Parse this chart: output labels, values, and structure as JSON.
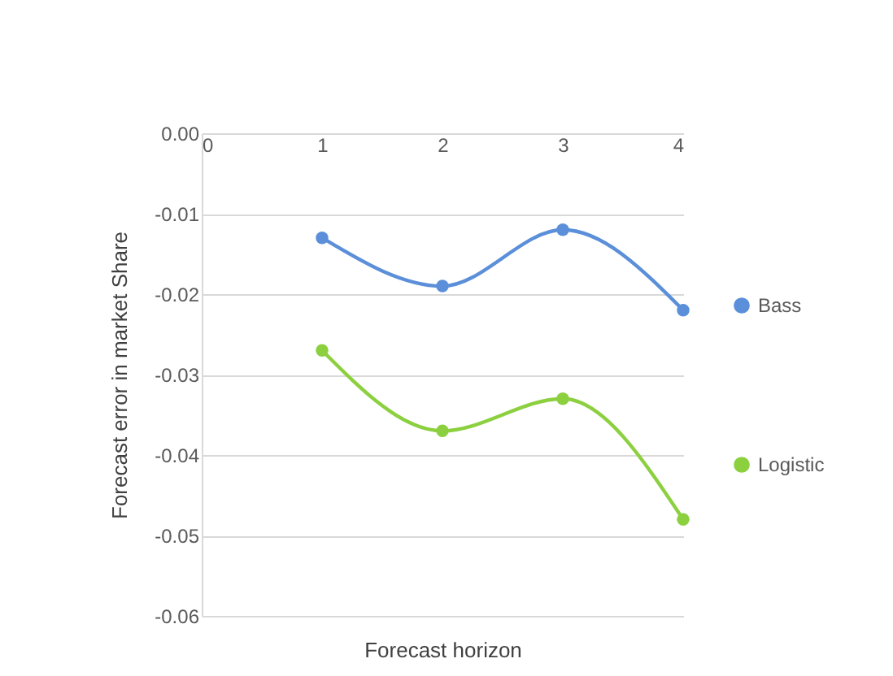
{
  "chart_data": {
    "type": "line",
    "xlabel": "Forecast horizon",
    "ylabel": "Forecast error in market Share",
    "x": [
      1,
      2,
      3,
      4
    ],
    "series": [
      {
        "name": "Bass",
        "color": "#5b8fd9",
        "values": [
          -0.013,
          -0.019,
          -0.012,
          -0.022
        ]
      },
      {
        "name": "Logistic",
        "color": "#8cd040",
        "values": [
          -0.027,
          -0.037,
          -0.033,
          -0.048
        ]
      }
    ],
    "xlim": [
      0,
      4
    ],
    "xticks": [
      0,
      1,
      2,
      3,
      4
    ],
    "ylim": [
      -0.06,
      0.0
    ],
    "yticks": [
      {
        "value": 0,
        "label": "0.00"
      },
      -0.01,
      -0.02,
      -0.03,
      -0.04,
      -0.05,
      -0.06
    ],
    "grid": "y",
    "legend": "right",
    "marker": "circle",
    "line_style": "solid"
  }
}
